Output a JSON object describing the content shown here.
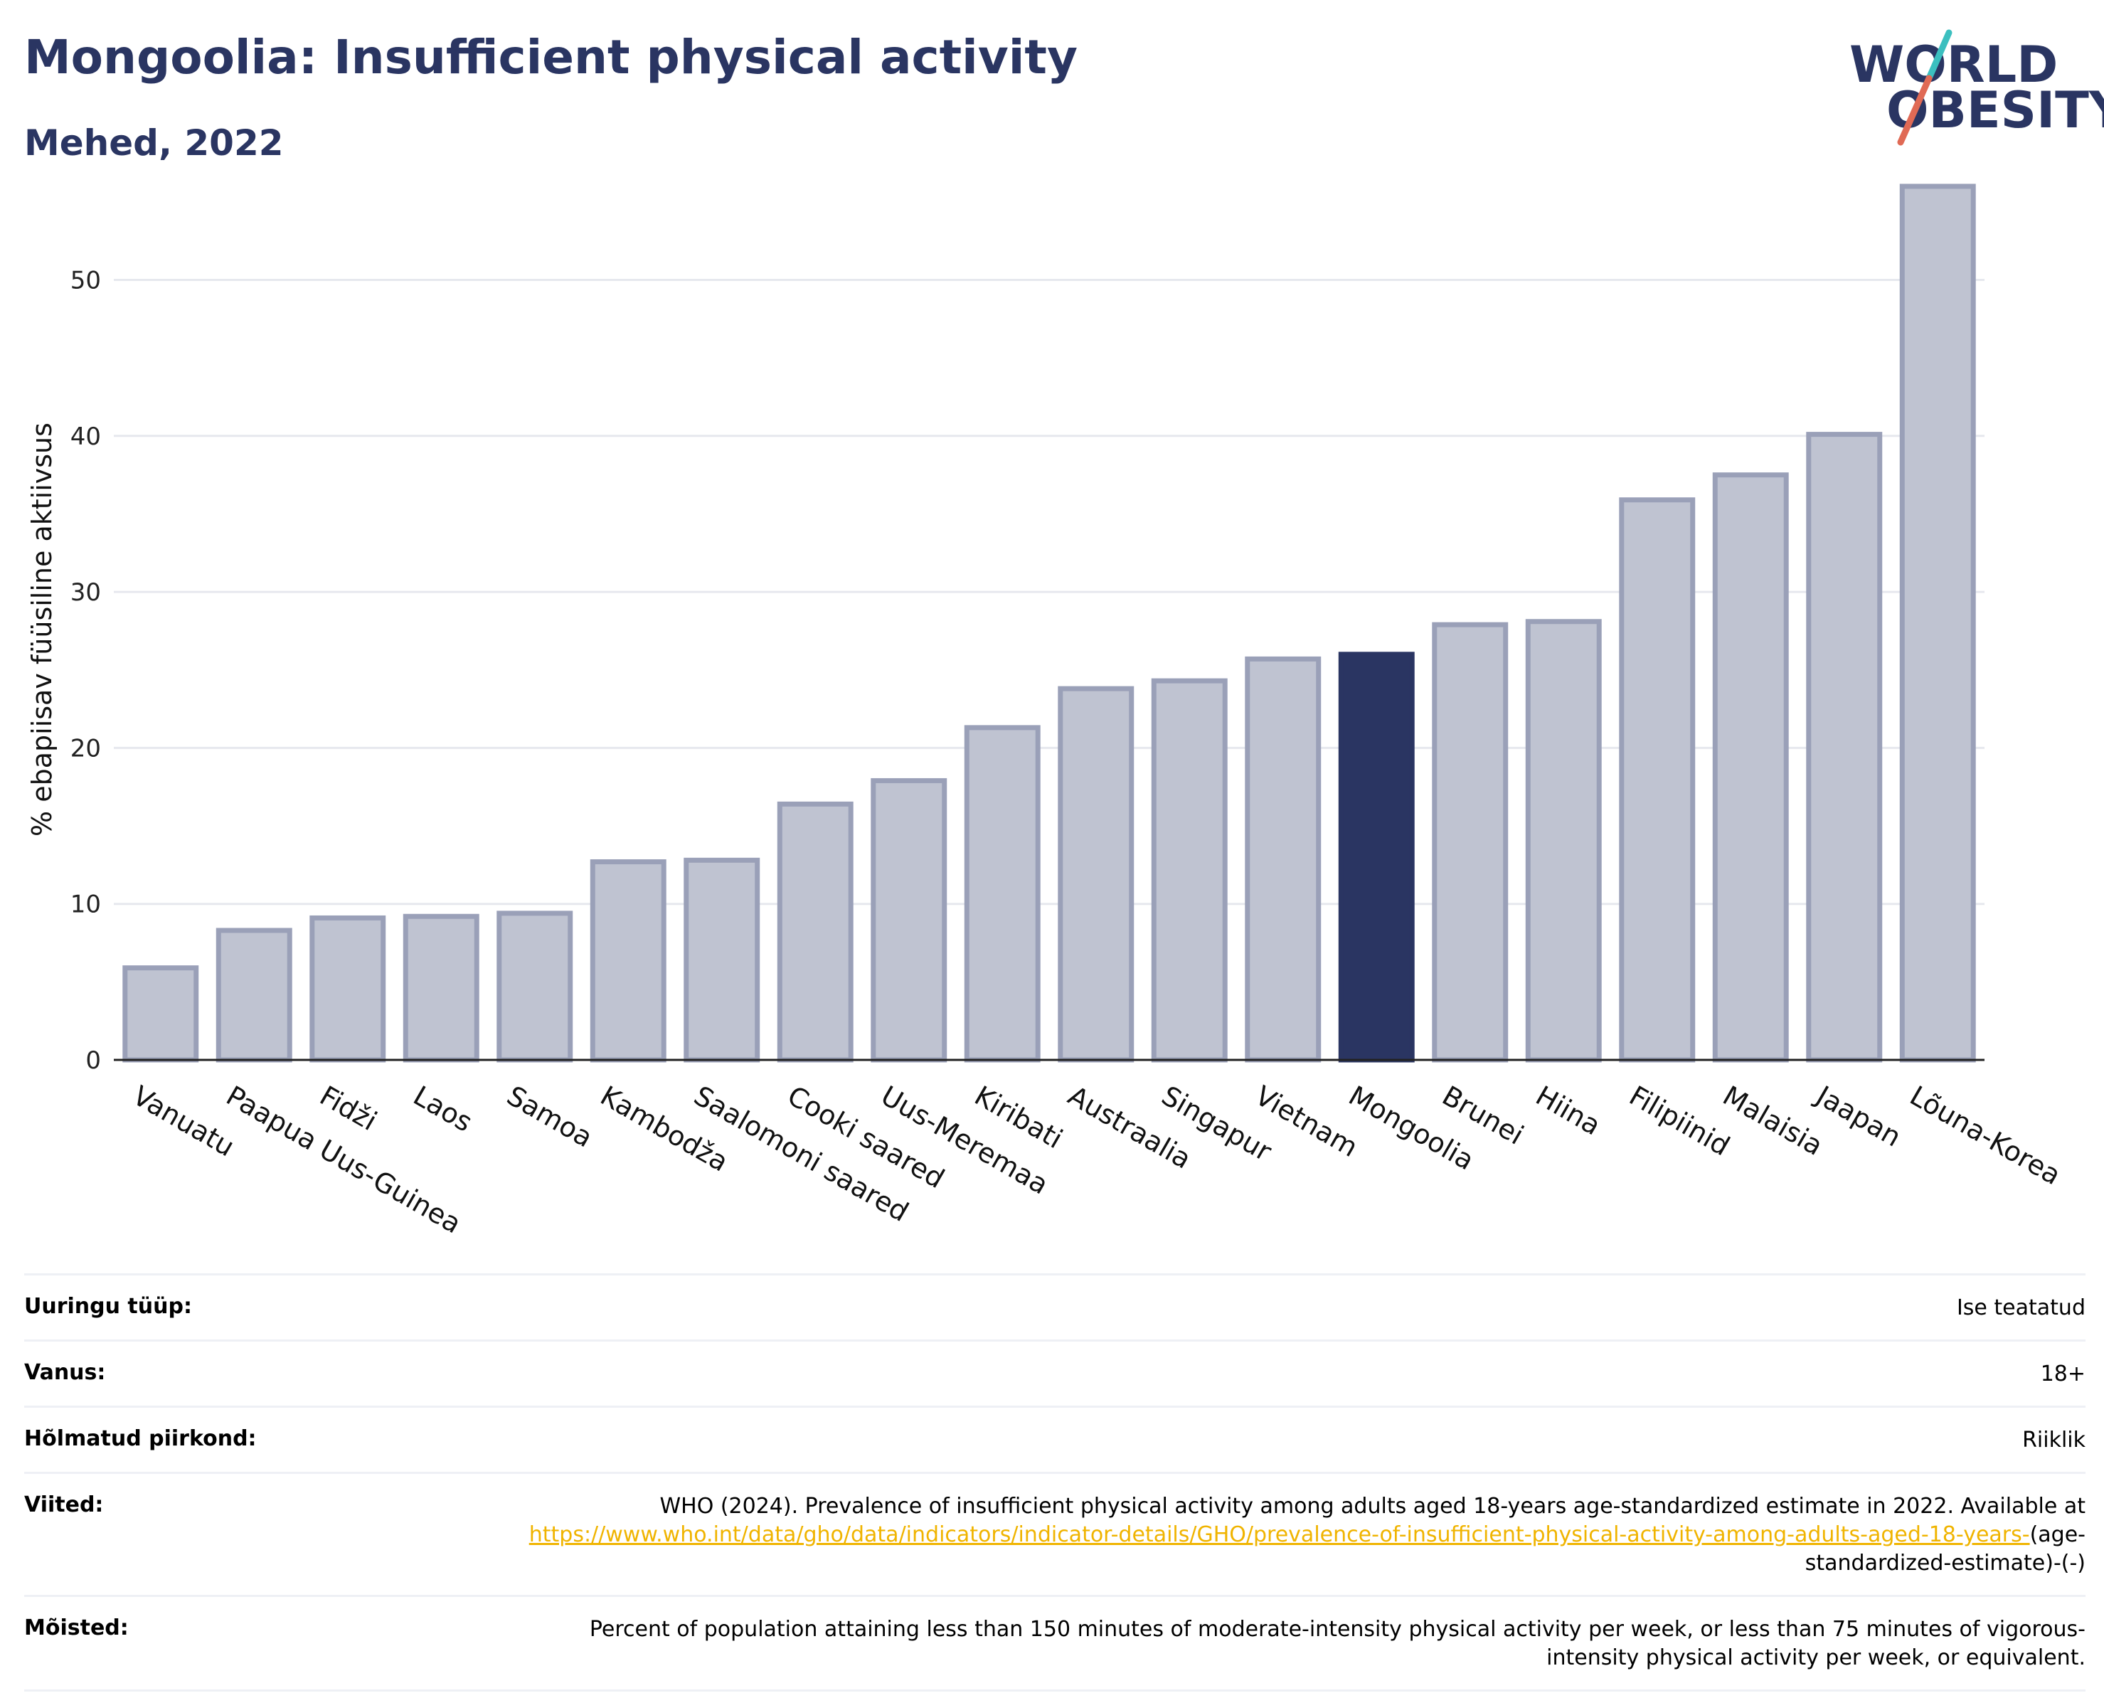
{
  "header": {
    "title": "Mongoolia: Insufficient physical activity",
    "subtitle": "Mehed, 2022",
    "logo_line1": "WORLD",
    "logo_line2": "OBESITY"
  },
  "colors": {
    "title": "#2a3562",
    "bar": "#bfc3d1",
    "bar_border": "#9aa0b8",
    "highlight": "#2a3562",
    "logo_teal": "#3bbfbf",
    "logo_coral": "#e06a55",
    "link": "#f0b400"
  },
  "chart_data": {
    "type": "bar",
    "title": "Mongoolia: Insufficient physical activity",
    "subtitle": "Mehed, 2022",
    "ylabel": "% ebapiisav füüsiline aktiivsus",
    "xlabel": "",
    "ylim": [
      0,
      57
    ],
    "yticks": [
      0,
      10,
      20,
      30,
      40,
      50
    ],
    "grid": true,
    "highlight": "Mongoolia",
    "categories": [
      "Vanuatu",
      "Paapua Uus-Guinea",
      "Fidži",
      "Laos",
      "Samoa",
      "Kambodža",
      "Saalomoni saared",
      "Cooki saared",
      "Uus-Meremaa",
      "Kiribati",
      "Austraalia",
      "Singapur",
      "Vietnam",
      "Mongoolia",
      "Brunei",
      "Hiina",
      "Filipiinid",
      "Malaisia",
      "Jaapan",
      "Lõuna-Korea"
    ],
    "values": [
      5.9,
      8.3,
      9.1,
      9.2,
      9.4,
      12.7,
      12.8,
      16.4,
      17.9,
      21.3,
      23.8,
      24.3,
      25.7,
      26.0,
      27.9,
      28.1,
      35.9,
      37.5,
      40.1,
      56.0
    ]
  },
  "table": {
    "rows": [
      {
        "key": "Uuringu tüüp:",
        "value": "Ise teatatud"
      },
      {
        "key": "Vanus:",
        "value": "18+"
      },
      {
        "key": "Hõlmatud piirkond:",
        "value": "Riiklik"
      },
      {
        "key": "Viited:",
        "value_prefix": "WHO (2024). Prevalence of insufficient physical activity among adults aged 18-years age-standardized estimate in 2022. Available at ",
        "link": "https://www.who.int/data/gho/data/indicators/indicator-details/GHO/prevalence-of-insufficient-physical-activity-among-adults-aged-18-years-",
        "value_suffix": "(age-standardized-estimate)-(-)"
      },
      {
        "key": "Mõisted:",
        "value": "Percent of population attaining less than 150 minutes of moderate-intensity physical activity per week, or less than 75 minutes of vigorous-intensity physical activity per week, or equivalent."
      }
    ]
  }
}
